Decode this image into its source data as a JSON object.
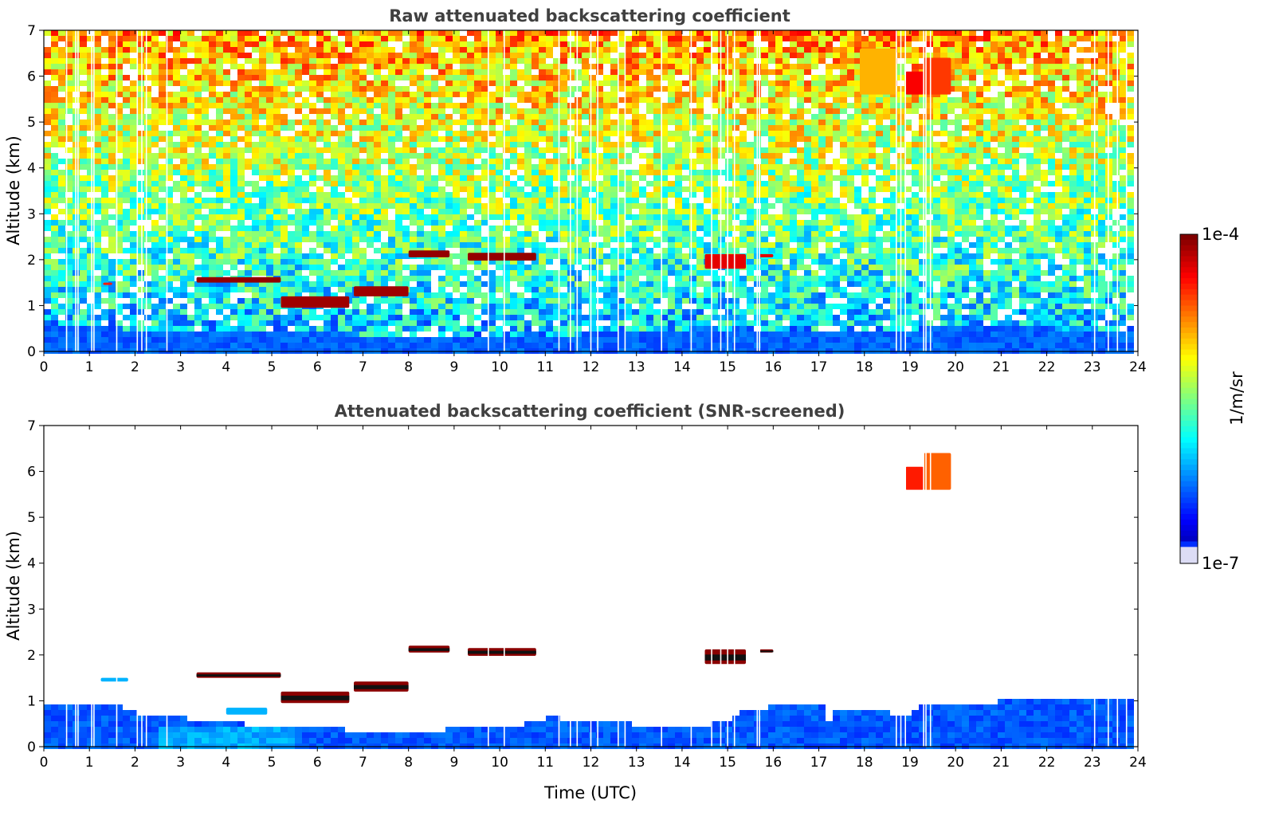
{
  "chart_data": [
    {
      "type": "heatmap",
      "title": "Raw attenuated backscattering coefficient",
      "xlabel": "",
      "ylabel": "Altitude (km)",
      "xlim": [
        0,
        24
      ],
      "ylim": [
        0,
        7
      ],
      "xticks": [
        "0",
        "1",
        "2",
        "3",
        "4",
        "5",
        "6",
        "7",
        "8",
        "9",
        "10",
        "11",
        "12",
        "13",
        "14",
        "15",
        "16",
        "17",
        "18",
        "19",
        "20",
        "21",
        "22",
        "23",
        "24"
      ],
      "yticks": [
        "0",
        "1",
        "2",
        "3",
        "4",
        "5",
        "6",
        "7"
      ],
      "background": "noisy",
      "boundary_layer": [
        [
          0,
          0.7
        ],
        [
          2.8,
          0.45
        ],
        [
          4,
          0.45
        ],
        [
          6,
          0.45
        ],
        [
          8,
          0.4
        ],
        [
          10,
          0.35
        ],
        [
          12,
          0.45
        ],
        [
          14,
          0.55
        ],
        [
          16,
          0.55
        ],
        [
          18,
          0.5
        ],
        [
          20,
          0.6
        ],
        [
          22,
          0.55
        ],
        [
          23.8,
          0.55
        ]
      ],
      "features": [
        {
          "x0": 1.3,
          "x1": 1.5,
          "y0": 1.45,
          "y1": 1.5,
          "level": 0.85
        },
        {
          "x0": 3.35,
          "x1": 5.2,
          "y0": 1.5,
          "y1": 1.62,
          "level": 0.98
        },
        {
          "x0": 5.2,
          "x1": 6.7,
          "y0": 0.95,
          "y1": 1.2,
          "level": 0.97
        },
        {
          "x0": 6.8,
          "x1": 8.0,
          "y0": 1.2,
          "y1": 1.42,
          "level": 0.97
        },
        {
          "x0": 8.0,
          "x1": 8.9,
          "y0": 2.05,
          "y1": 2.2,
          "level": 0.98
        },
        {
          "x0": 9.3,
          "x1": 10.8,
          "y0": 1.98,
          "y1": 2.15,
          "level": 0.98
        },
        {
          "x0": 14.5,
          "x1": 15.4,
          "y0": 1.8,
          "y1": 2.12,
          "level": 0.9
        },
        {
          "x0": 15.7,
          "x1": 16.0,
          "y0": 2.05,
          "y1": 2.12,
          "level": 0.9
        },
        {
          "x0": 17.9,
          "x1": 18.7,
          "y0": 5.6,
          "y1": 6.6,
          "level": 0.7
        },
        {
          "x0": 18.9,
          "x1": 19.3,
          "y0": 5.6,
          "y1": 6.1,
          "level": 0.88
        },
        {
          "x0": 19.3,
          "x1": 19.9,
          "y0": 5.6,
          "y1": 6.4,
          "level": 0.82
        }
      ],
      "gaps_hours": [
        0.5,
        0.7,
        0.75,
        1.05,
        1.1,
        1.6,
        2.05,
        2.15,
        2.25,
        2.7,
        9.75,
        10.1,
        11.3,
        11.55,
        11.7,
        12.0,
        12.15,
        12.6,
        12.75,
        13.55,
        14.2,
        14.65,
        14.85,
        15.0,
        15.15,
        15.65,
        15.7,
        18.7,
        18.8,
        18.9,
        19.3,
        19.35,
        19.45,
        23.05,
        23.35,
        23.55,
        23.75
      ]
    },
    {
      "type": "heatmap",
      "title": "Attenuated backscattering coefficient (SNR-screened)",
      "xlabel": "Time (UTC)",
      "ylabel": "Altitude (km)",
      "xlim": [
        0,
        24
      ],
      "ylim": [
        0,
        7
      ],
      "xticks": [
        "0",
        "1",
        "2",
        "3",
        "4",
        "5",
        "6",
        "7",
        "8",
        "9",
        "10",
        "11",
        "12",
        "13",
        "14",
        "15",
        "16",
        "17",
        "18",
        "19",
        "20",
        "21",
        "22",
        "23",
        "24"
      ],
      "yticks": [
        "0",
        "1",
        "2",
        "3",
        "4",
        "5",
        "6",
        "7"
      ],
      "background": "screened",
      "boundary_layer": [
        [
          0,
          1.0
        ],
        [
          1.5,
          0.95
        ],
        [
          2.0,
          0.8
        ],
        [
          2.8,
          0.75
        ],
        [
          3.5,
          0.6
        ],
        [
          4.5,
          0.55
        ],
        [
          5.3,
          0.5
        ],
        [
          6,
          0.45
        ],
        [
          7,
          0.42
        ],
        [
          8,
          0.4
        ],
        [
          9,
          0.45
        ],
        [
          10,
          0.45
        ],
        [
          11,
          0.7
        ],
        [
          12,
          0.6
        ],
        [
          13,
          0.55
        ],
        [
          14,
          0.5
        ],
        [
          14.5,
          0.55
        ],
        [
          15,
          0.6
        ],
        [
          15.3,
          0.85
        ],
        [
          16,
          0.95
        ],
        [
          17,
          0.95
        ],
        [
          17.1,
          0.35
        ],
        [
          17.2,
          0.9
        ],
        [
          18,
          0.9
        ],
        [
          18.8,
          0.75
        ],
        [
          19.2,
          0.95
        ],
        [
          20,
          1.0
        ],
        [
          21,
          1.05
        ],
        [
          22,
          1.1
        ],
        [
          23,
          1.05
        ],
        [
          23.8,
          1.05
        ]
      ],
      "features": [
        {
          "x0": 1.25,
          "x1": 1.85,
          "y0": 1.42,
          "y1": 1.5,
          "level": 0.3
        },
        {
          "x0": 3.35,
          "x1": 5.2,
          "y0": 1.5,
          "y1": 1.62,
          "level": 0.99
        },
        {
          "x0": 5.2,
          "x1": 6.7,
          "y0": 0.95,
          "y1": 1.2,
          "level": 0.99
        },
        {
          "x0": 6.8,
          "x1": 8.0,
          "y0": 1.2,
          "y1": 1.42,
          "level": 0.99
        },
        {
          "x0": 8.0,
          "x1": 8.9,
          "y0": 2.05,
          "y1": 2.2,
          "level": 0.99
        },
        {
          "x0": 9.3,
          "x1": 10.8,
          "y0": 1.98,
          "y1": 2.15,
          "level": 0.99
        },
        {
          "x0": 14.5,
          "x1": 15.4,
          "y0": 1.8,
          "y1": 2.12,
          "level": 0.99
        },
        {
          "x0": 15.7,
          "x1": 16.0,
          "y0": 2.05,
          "y1": 2.12,
          "level": 0.99
        },
        {
          "x0": 18.9,
          "x1": 19.3,
          "y0": 5.6,
          "y1": 6.1,
          "level": 0.85
        },
        {
          "x0": 19.3,
          "x1": 19.9,
          "y0": 5.6,
          "y1": 6.4,
          "level": 0.78
        },
        {
          "x0": 4.0,
          "x1": 4.9,
          "y0": 0.7,
          "y1": 0.85,
          "level": 0.3
        }
      ],
      "gaps_hours": [
        0.5,
        0.7,
        0.75,
        1.05,
        1.1,
        1.6,
        2.05,
        2.15,
        2.25,
        2.7,
        9.75,
        10.1,
        11.3,
        11.55,
        11.7,
        12.0,
        12.15,
        12.6,
        12.75,
        13.55,
        14.2,
        14.65,
        14.85,
        15.0,
        15.15,
        15.65,
        15.7,
        18.7,
        18.8,
        18.9,
        19.3,
        19.35,
        19.45,
        23.05,
        23.35,
        23.55,
        23.75
      ]
    }
  ],
  "colorbar": {
    "label": "1/m/sr",
    "max_label": "1e-4",
    "min_label": "1e-7",
    "scale": "log",
    "colormap": "jet"
  }
}
